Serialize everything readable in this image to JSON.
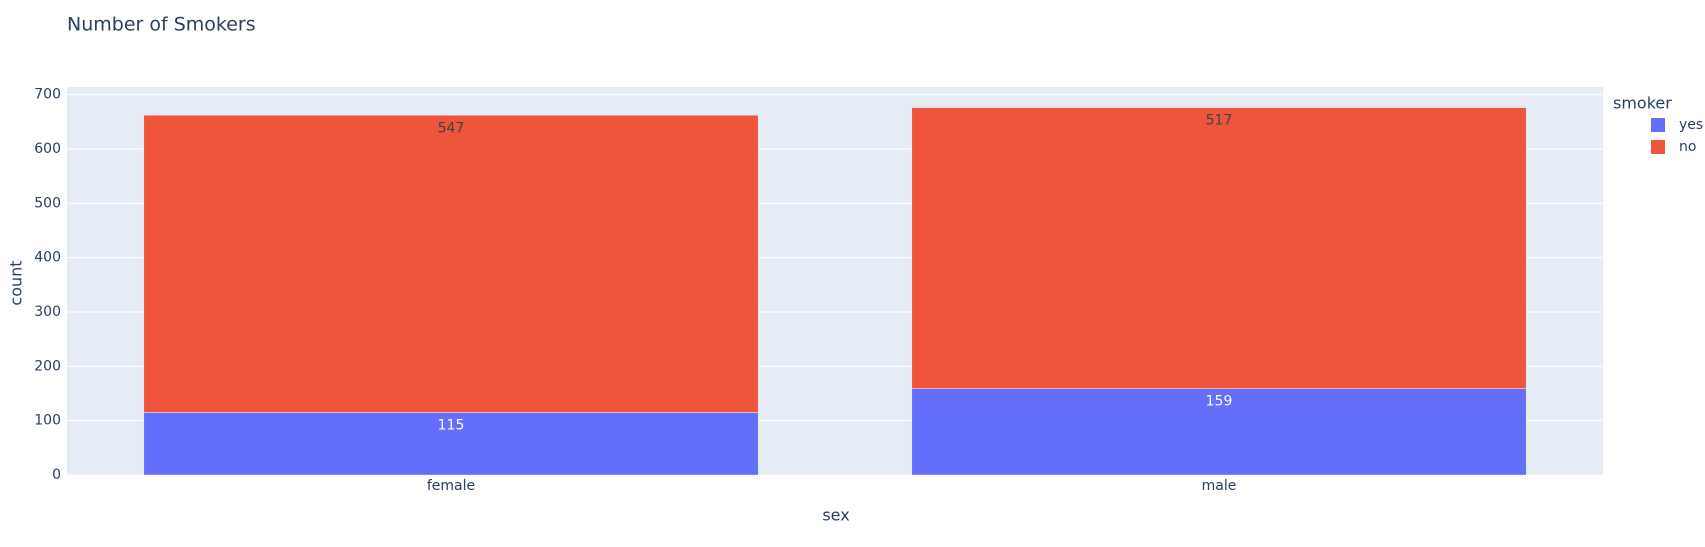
{
  "chart_data": {
    "type": "stacked_bar",
    "title": "Number of Smokers",
    "x_label": "sex",
    "y_label": "count",
    "legend_title": "smoker",
    "categories": [
      "female",
      "male"
    ],
    "series": [
      {
        "name": "yes",
        "color": "#636efa",
        "values": [
          115,
          159
        ]
      },
      {
        "name": "no",
        "color": "#ef553b",
        "values": [
          547,
          517
        ]
      }
    ],
    "ylim": [
      0,
      714
    ],
    "yticks": [
      0,
      100,
      200,
      300,
      400,
      500,
      600,
      700
    ],
    "grid": true,
    "legend": "right"
  }
}
